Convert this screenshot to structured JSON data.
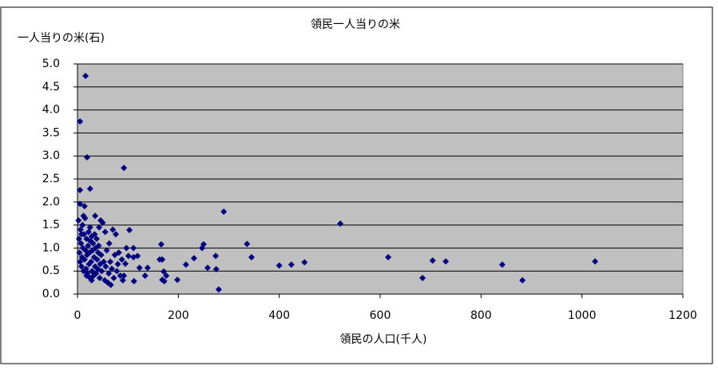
{
  "chart_data": {
    "type": "scatter",
    "title": "領民一人当りの米",
    "y_label": "一人当りの米(石)",
    "x_label": "領民の人口(千人)",
    "color": "#000080",
    "plot_background": "#c0c0c0",
    "grid": true,
    "xlim": [
      0,
      1200
    ],
    "xticks": [
      0,
      200,
      400,
      600,
      800,
      1000,
      1200
    ],
    "ylim": [
      0,
      5
    ],
    "yticks": [
      {
        "value": 0,
        "label": "0.0"
      },
      {
        "value": 0.5,
        "label": "0.5"
      },
      {
        "value": 1,
        "label": "1.0"
      },
      {
        "value": 1.5,
        "label": "1.5"
      },
      {
        "value": 2,
        "label": "2.0"
      },
      {
        "value": 2.5,
        "label": "2.5"
      },
      {
        "value": 3,
        "label": "3.0"
      },
      {
        "value": 3.5,
        "label": "3.5"
      },
      {
        "value": 4,
        "label": "4.0"
      },
      {
        "value": 4.5,
        "label": "4.5"
      },
      {
        "value": 5,
        "label": "5.0"
      }
    ],
    "x": [
      16,
      5,
      19,
      92,
      5,
      25,
      5,
      14,
      290,
      521,
      103,
      166,
      250,
      247,
      336,
      345,
      274,
      616,
      704,
      730,
      1026,
      450,
      424,
      400,
      842,
      684,
      882,
      280,
      275,
      258,
      231,
      215,
      198,
      176,
      171,
      163,
      168,
      168,
      172,
      139,
      134,
      123,
      119,
      111,
      112,
      101,
      95,
      92,
      97,
      111,
      2,
      3,
      4,
      5,
      6,
      7,
      8,
      9,
      10,
      11,
      12,
      13,
      14,
      15,
      16,
      17,
      18,
      19,
      20,
      21,
      22,
      23,
      24,
      25,
      26,
      27,
      28,
      29,
      30,
      31,
      32,
      33,
      34,
      35,
      36,
      37,
      38,
      39,
      40,
      41,
      42,
      44,
      45,
      46,
      47,
      48,
      50,
      52,
      54,
      55,
      56,
      58,
      60,
      62,
      63,
      65,
      66,
      68,
      70,
      72,
      74,
      76,
      78,
      80,
      82,
      85,
      88,
      90,
      35,
      25,
      12,
      8,
      28,
      18,
      43
    ],
    "y": [
      4.74,
      3.75,
      2.97,
      2.74,
      2.26,
      2.29,
      1.96,
      1.91,
      1.79,
      1.53,
      1.39,
      1.08,
      1.08,
      1.0,
      1.09,
      0.8,
      0.83,
      0.8,
      0.73,
      0.71,
      0.71,
      0.69,
      0.64,
      0.62,
      0.64,
      0.35,
      0.3,
      0.1,
      0.54,
      0.57,
      0.78,
      0.64,
      0.31,
      0.4,
      0.49,
      0.75,
      0.75,
      0.31,
      0.28,
      0.57,
      0.4,
      0.57,
      0.83,
      0.8,
      0.28,
      0.83,
      0.66,
      0.4,
      1.0,
      1.0,
      1.6,
      1.2,
      0.9,
      0.7,
      1.4,
      1.1,
      0.6,
      0.8,
      1.5,
      1.0,
      0.5,
      1.3,
      0.75,
      1.65,
      0.95,
      0.55,
      1.2,
      0.85,
      0.45,
      1.05,
      1.35,
      0.65,
      0.9,
      0.35,
      1.15,
      0.7,
      1.25,
      0.5,
      0.95,
      1.1,
      0.4,
      0.8,
      1.3,
      0.6,
      1.0,
      0.45,
      1.2,
      0.75,
      0.55,
      0.9,
      1.05,
      0.35,
      0.65,
      1.6,
      0.85,
      0.5,
      1.55,
      0.7,
      0.3,
      1.35,
      0.6,
      0.95,
      0.25,
      0.45,
      1.1,
      0.7,
      0.2,
      0.55,
      1.4,
      0.35,
      0.85,
      1.3,
      0.5,
      0.65,
      0.9,
      0.4,
      0.75,
      0.3,
      1.7,
      1.45,
      1.7,
      1.3,
      0.3,
      0.4,
      1.45
    ]
  }
}
